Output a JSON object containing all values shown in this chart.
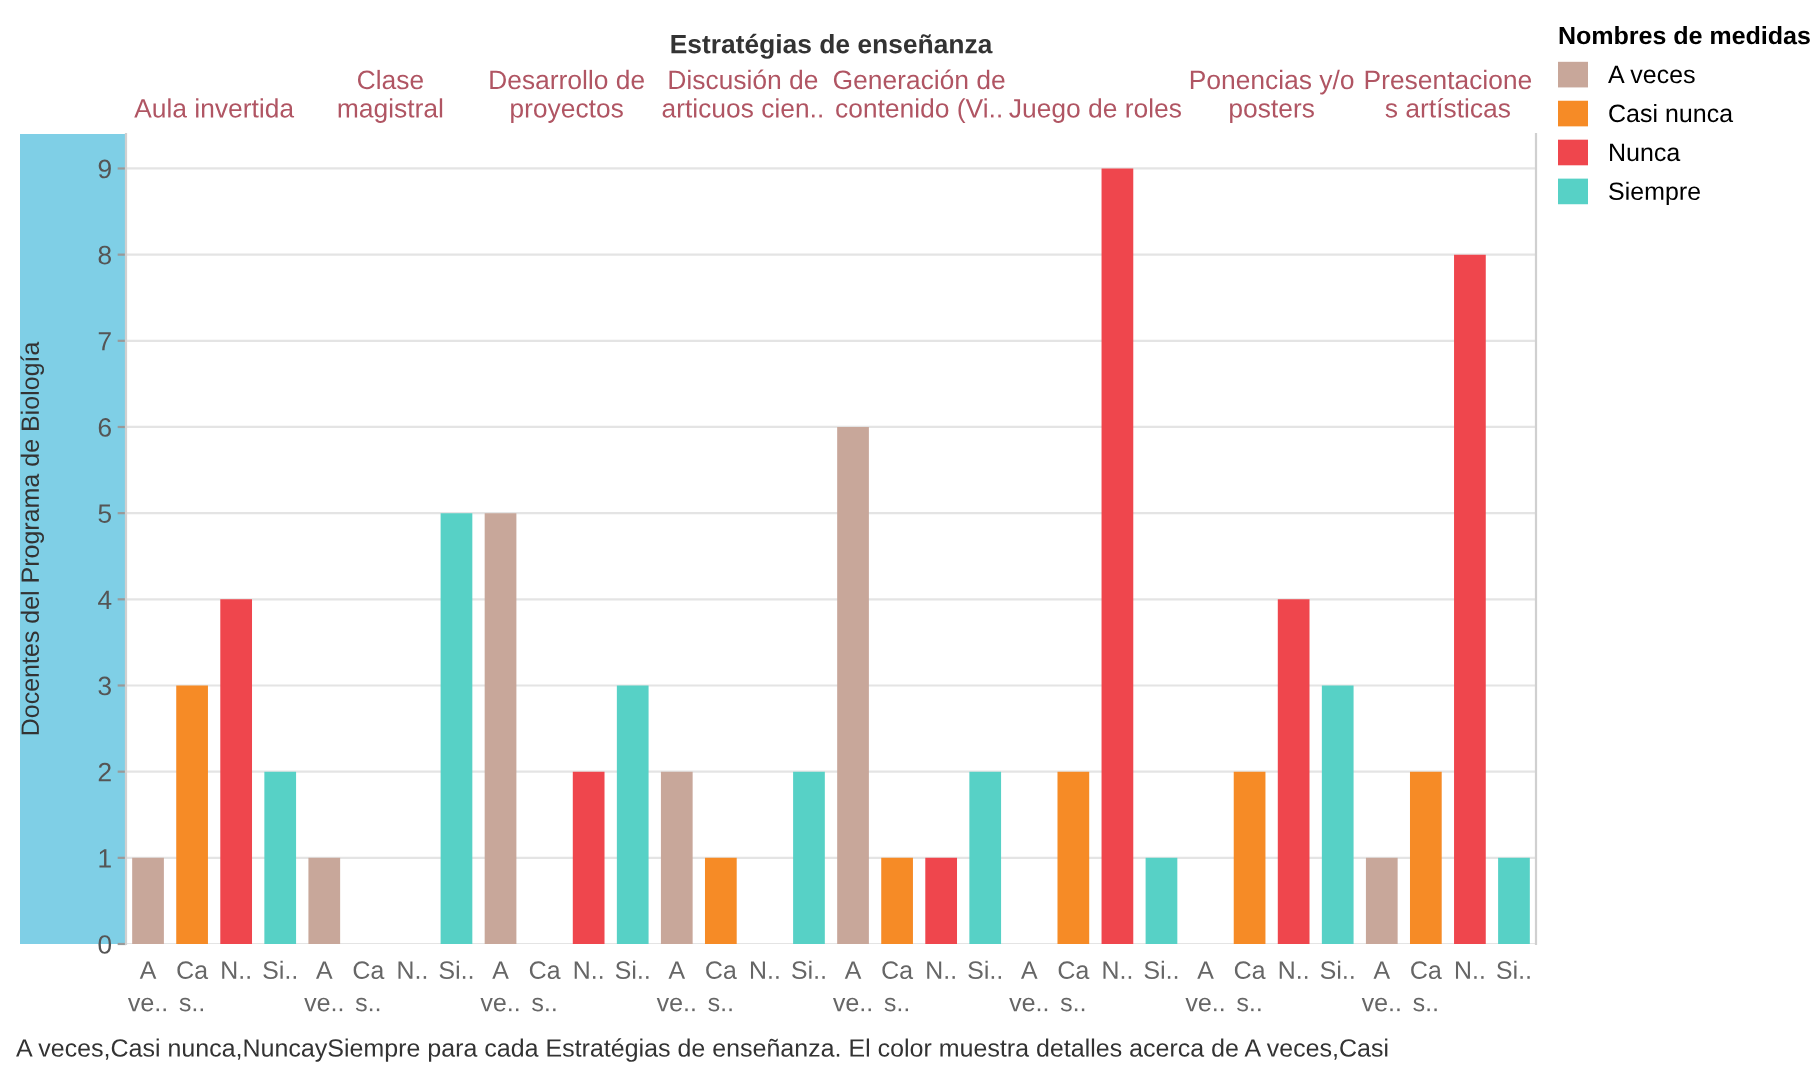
{
  "chart_data": {
    "type": "bar",
    "xlabel": "Estratégias de enseñanza",
    "ylabel": "Docentes del Programa de Biología",
    "legend_title": "Nombres de medidas",
    "legend": "right",
    "categories": [
      "Aula invertida",
      "Clase\nmagistral",
      "Desarrollo de\nproyectos",
      "Discusión de\narticuos cien..",
      "Generación de\ncontenido (Vi..",
      "Juego de roles",
      "Ponencias y/o\nposters",
      "Presentacione\ns artísticas"
    ],
    "ylim": [
      0,
      9.4
    ],
    "yticks": [
      0,
      1,
      2,
      3,
      4,
      5,
      6,
      7,
      8,
      9
    ],
    "grid": "y",
    "series": [
      {
        "name": "A veces",
        "color": "#c8a79a",
        "values": [
          1,
          1,
          5,
          2,
          6,
          null,
          null,
          1
        ]
      },
      {
        "name": "Casi nunca",
        "color": "#f68b26",
        "values": [
          3,
          null,
          null,
          1,
          1,
          2,
          2,
          2
        ]
      },
      {
        "name": "Nunca",
        "color": "#ef464d",
        "values": [
          4,
          null,
          2,
          null,
          1,
          9,
          4,
          8
        ]
      },
      {
        "name": "Siempre",
        "color": "#57d1c6",
        "values": [
          2,
          5,
          3,
          2,
          2,
          1,
          3,
          1
        ]
      }
    ],
    "annotations": [
      "A\nve..",
      "Ca\ns..",
      "N..",
      "Si..",
      "A\nve..",
      "Ca\ns..",
      "N..",
      "Si..",
      "A\nve..",
      "Ca\ns..",
      "N..",
      "Si..",
      "A\nve..",
      "Ca\ns..",
      "N..",
      "Si..",
      "A\nve..",
      "Ca\ns..",
      "N..",
      "Si..",
      "A\nve..",
      "Ca\ns..",
      "N..",
      "Si..",
      "A\nve..",
      "Ca\ns..",
      "N..",
      "Si..",
      "A\nve..",
      "Ca\ns..",
      "N..",
      "Si..",
      "A veces,Casi nunca,NuncaySiempre para cada Estratégias de enseñanza. El color muestra detalles acerca de A veces,Casi"
    ]
  }
}
